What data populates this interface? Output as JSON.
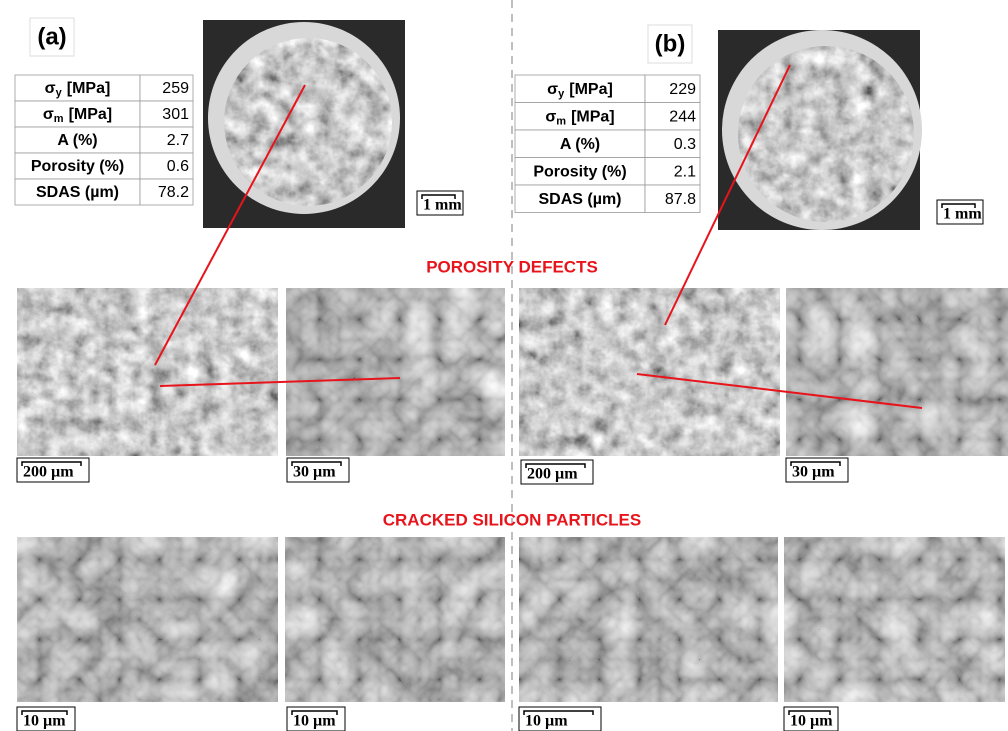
{
  "panels": [
    {
      "label": "(a)",
      "table": [
        {
          "name": "σ",
          "sub": "y",
          "unit": "[MPa]",
          "value": 259
        },
        {
          "name": "σ",
          "sub": "m",
          "unit": "[MPa]",
          "value": 301
        },
        {
          "name": "A (%)",
          "value": 2.7
        },
        {
          "name": "Porosity (%)",
          "value": 0.6
        },
        {
          "name": "SDAS (µm)",
          "value": 78.2
        }
      ],
      "overview_scale": "1 mm",
      "porosity_scales": [
        "200 µm",
        "30 µm"
      ],
      "silicon_scales": [
        "10 µm",
        "10 µm"
      ]
    },
    {
      "label": "(b)",
      "table": [
        {
          "name": "σ",
          "sub": "y",
          "unit": "[MPa]",
          "value": 229
        },
        {
          "name": "σ",
          "sub": "m",
          "unit": "[MPa]",
          "value": 244
        },
        {
          "name": "A (%)",
          "value": 0.3
        },
        {
          "name": "Porosity (%)",
          "value": 2.1
        },
        {
          "name": "SDAS (µm)",
          "value": 87.8
        }
      ],
      "overview_scale": "1 mm",
      "porosity_scales": [
        "200 µm",
        "30 µm"
      ],
      "silicon_scales": [
        "10 µm",
        "10 µm"
      ]
    }
  ],
  "sections": [
    "POROSITY DEFECTS",
    "CRACKED SILICON PARTICLES"
  ]
}
